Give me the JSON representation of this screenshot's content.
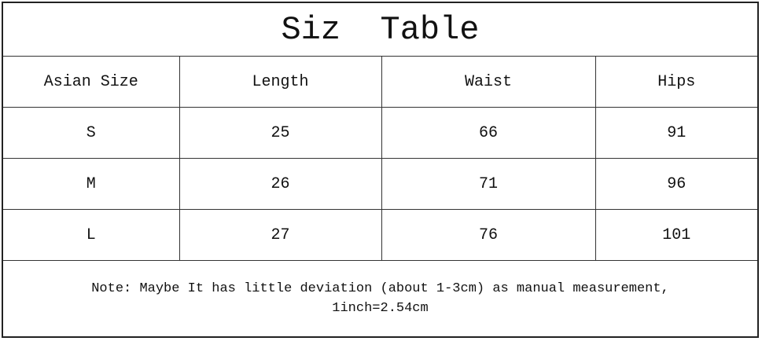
{
  "title": "Siz  Table",
  "table": {
    "headers": [
      "Asian Size",
      "Length",
      "Waist",
      "Hips"
    ],
    "rows": [
      [
        "S",
        "25",
        "66",
        "91"
      ],
      [
        "M",
        "26",
        "71",
        "96"
      ],
      [
        "L",
        "27",
        "76",
        "101"
      ]
    ]
  },
  "note": {
    "line1": "Note: Maybe It has little deviation (about 1-3cm) as manual measurement,",
    "line2": "1inch=2.54cm"
  }
}
